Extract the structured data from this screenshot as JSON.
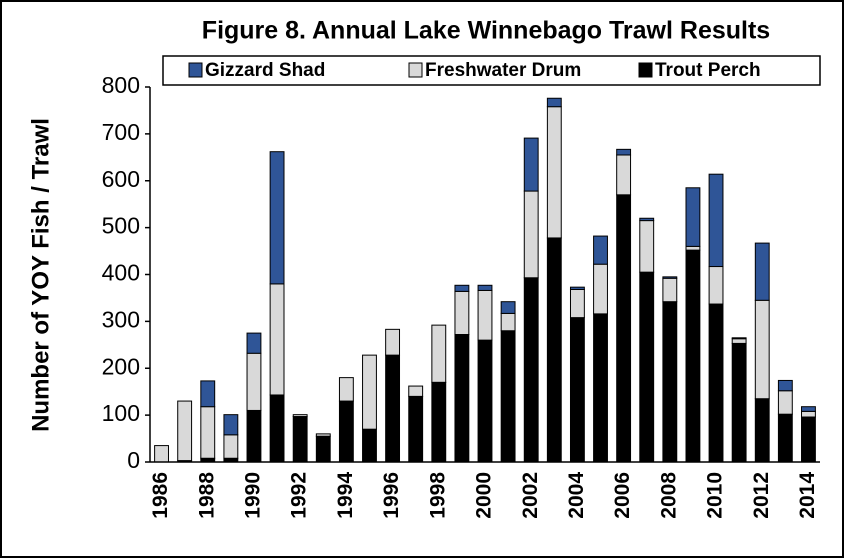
{
  "chart_data": {
    "type": "stacked_bar",
    "title": "Figure 8.  Annual Lake Winnebago Trawl Results",
    "y_label": "Number of YOY Fish / Trawl",
    "categories": [
      "1986",
      null,
      "1988",
      null,
      "1990",
      null,
      "1992",
      null,
      "1994",
      null,
      "1996",
      null,
      "1998",
      null,
      "2000",
      null,
      "2002",
      null,
      "2004",
      null,
      "2006",
      null,
      "2008",
      null,
      "2010",
      null,
      "2012",
      null,
      "2014"
    ],
    "series": [
      {
        "name": "Gizzard Shad",
        "color": "#2f5597",
        "values": [
          0,
          0,
          55,
          43,
          43,
          282,
          0,
          0,
          0,
          0,
          0,
          0,
          0,
          13,
          11,
          25,
          113,
          18,
          5,
          60,
          12,
          5,
          3,
          125,
          197,
          2,
          122,
          22,
          10
        ]
      },
      {
        "name": "Freshwater Drum",
        "color": "#d9d9d9",
        "values": [
          35,
          127,
          110,
          50,
          122,
          237,
          4,
          5,
          50,
          158,
          55,
          22,
          122,
          92,
          106,
          37,
          185,
          280,
          60,
          106,
          85,
          110,
          50,
          8,
          80,
          10,
          210,
          50,
          12
        ]
      },
      {
        "name": "Trout Perch",
        "color": "#000000",
        "values": [
          0,
          3,
          8,
          8,
          110,
          143,
          97,
          55,
          130,
          70,
          228,
          140,
          170,
          272,
          260,
          280,
          393,
          478,
          308,
          316,
          570,
          405,
          342,
          452,
          337,
          253,
          135,
          102,
          96
        ]
      }
    ],
    "ylim": [
      0,
      800
    ],
    "yticks": [
      0,
      100,
      200,
      300,
      400,
      500,
      600,
      700,
      800
    ],
    "grid": false
  }
}
